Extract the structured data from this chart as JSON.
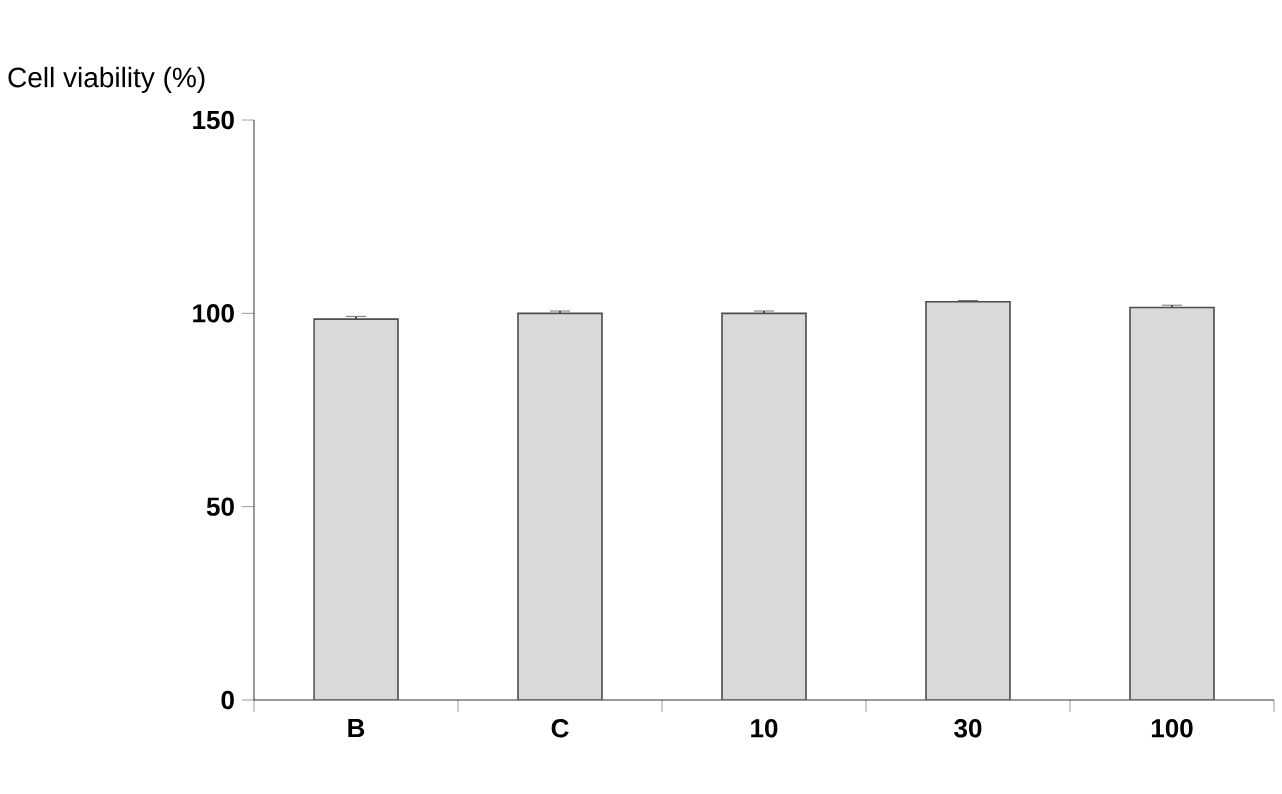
{
  "chart_data": {
    "type": "bar",
    "ylabel": "Cell viability (%)",
    "categories": [
      "B",
      "C",
      "10",
      "30",
      "100"
    ],
    "values": [
      98.5,
      100,
      100,
      103,
      101.5
    ],
    "errors": [
      0.7,
      0.6,
      0.6,
      0.3,
      0.6
    ],
    "color": "#d9d9d9",
    "ylim": [
      0,
      150
    ],
    "yticks": [
      0,
      50,
      100,
      150
    ],
    "grid": false
  }
}
